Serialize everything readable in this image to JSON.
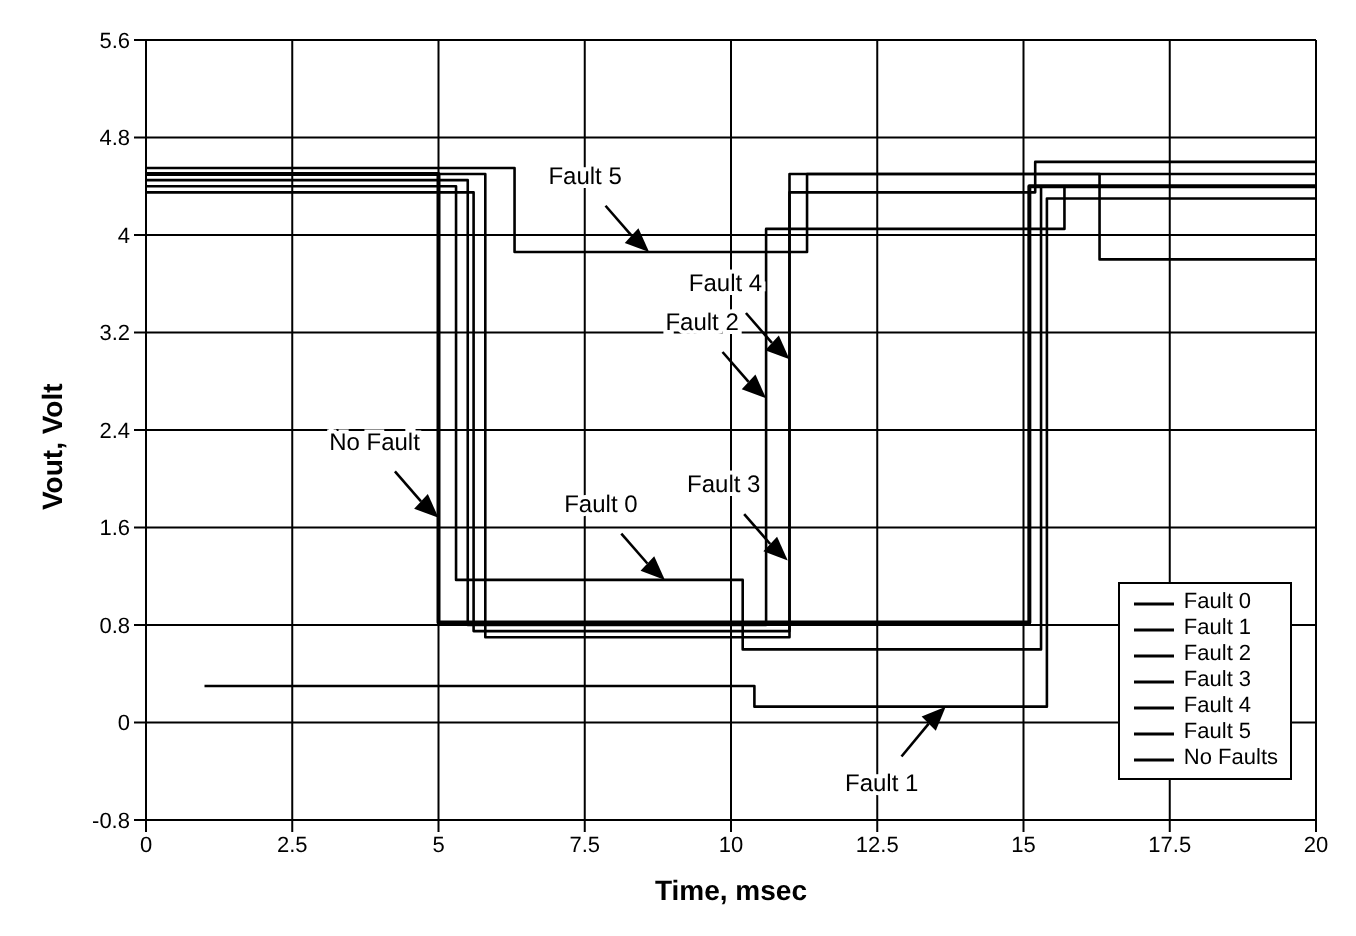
{
  "chart_data": {
    "type": "step",
    "xlabel": "Time, msec",
    "ylabel": "Vout, Volt",
    "xlim": [
      0,
      20
    ],
    "xticks": [
      0,
      2.5,
      5,
      7.5,
      10,
      12.5,
      15,
      17.5,
      20
    ],
    "ylim": [
      -0.8,
      5.6
    ],
    "yticks": [
      -0.8,
      0,
      0.8,
      1.6,
      2.4,
      3.2,
      4,
      4.8,
      5.6
    ],
    "grid": true,
    "legend": "bottom right",
    "marker": "none",
    "line_style": "solid",
    "series": [
      {
        "name": "Fault 0",
        "color": "#000000",
        "x": [
          0,
          5.3,
          10.2,
          15.3,
          20
        ],
        "values": [
          4.4,
          1.17,
          0.6,
          4.4,
          4.4
        ]
      },
      {
        "name": "Fault 1",
        "color": "#000000",
        "x": [
          1,
          10.4,
          15.4,
          20
        ],
        "values": [
          0.3,
          0.13,
          4.3,
          4.3
        ]
      },
      {
        "name": "Fault 2",
        "color": "#000000",
        "x": [
          0,
          5.5,
          10.6,
          15.7,
          20
        ],
        "values": [
          4.45,
          0.8,
          4.05,
          4.4,
          4.4
        ]
      },
      {
        "name": "Fault 3",
        "color": "#000000",
        "x": [
          0,
          5.6,
          11,
          15.2,
          20
        ],
        "values": [
          4.35,
          0.75,
          4.35,
          4.5,
          4.5
        ]
      },
      {
        "name": "Fault 4",
        "color": "#000000",
        "x": [
          0,
          5.8,
          11,
          15.2,
          20
        ],
        "values": [
          4.5,
          0.7,
          4.5,
          4.6,
          4.6
        ]
      },
      {
        "name": "Fault 5",
        "color": "#000000",
        "x": [
          0,
          6.3,
          11.3,
          16.3,
          20
        ],
        "values": [
          4.55,
          3.86,
          4.5,
          3.8,
          3.8
        ]
      },
      {
        "name": "No Faults",
        "color": "#000000",
        "x": [
          0,
          5,
          15.1,
          20
        ],
        "values": [
          4.5,
          0.82,
          4.4,
          4.4
        ]
      }
    ],
    "annotations": [
      {
        "text": "Fault 5",
        "x": 8.6,
        "y": 3.86
      },
      {
        "text": "Fault 2",
        "x": 10.6,
        "y": 2.66
      },
      {
        "text": "Fault 4",
        "x": 11,
        "y": 2.98
      },
      {
        "text": "No Fault",
        "x": 5,
        "y": 1.68
      },
      {
        "text": "Fault 0",
        "x": 8.87,
        "y": 1.17
      },
      {
        "text": "Fault 3",
        "x": 10.97,
        "y": 1.33
      },
      {
        "text": "Fault 1",
        "x": 13.67,
        "y": 0.13
      }
    ]
  }
}
